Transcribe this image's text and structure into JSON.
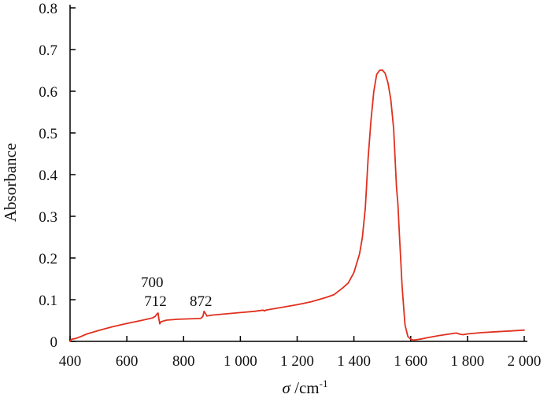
{
  "chart_data": {
    "type": "line",
    "title": "",
    "ylabel": "Absorbance",
    "xlabel_symbol": "σ",
    "xlabel_unit": " /cm",
    "xlabel_exponent": "-1",
    "xlim": [
      400,
      2000
    ],
    "ylim": [
      0,
      0.8
    ],
    "xticks": [
      {
        "value": 400,
        "label": "400"
      },
      {
        "value": 600,
        "label": "600"
      },
      {
        "value": 800,
        "label": "800"
      },
      {
        "value": 1000,
        "label": "1 000"
      },
      {
        "value": 1200,
        "label": "1 200"
      },
      {
        "value": 1400,
        "label": "1 400"
      },
      {
        "value": 1600,
        "label": "1 600"
      },
      {
        "value": 1800,
        "label": "1 800"
      },
      {
        "value": 2000,
        "label": "2 000"
      }
    ],
    "yticks": [
      {
        "value": 0,
        "label": "0"
      },
      {
        "value": 0.1,
        "label": "0.1"
      },
      {
        "value": 0.2,
        "label": "0.2"
      },
      {
        "value": 0.3,
        "label": "0.3"
      },
      {
        "value": 0.4,
        "label": "0.4"
      },
      {
        "value": 0.5,
        "label": "0.5"
      },
      {
        "value": 0.6,
        "label": "0.6"
      },
      {
        "value": 0.7,
        "label": "0.7"
      },
      {
        "value": 0.8,
        "label": "0.8"
      }
    ],
    "grid": false,
    "series": [
      {
        "color": "#e0301e",
        "x": [
          400,
          405,
          420,
          440,
          460,
          500,
          550,
          600,
          650,
          690,
          700,
          705,
          710,
          712,
          716,
          720,
          740,
          780,
          820,
          860,
          868,
          872,
          876,
          882,
          900,
          950,
          1000,
          1050,
          1080,
          1085,
          1090,
          1150,
          1200,
          1250,
          1300,
          1330,
          1360,
          1380,
          1400,
          1420,
          1430,
          1440,
          1445,
          1450,
          1460,
          1470,
          1480,
          1490,
          1500,
          1510,
          1520,
          1530,
          1540,
          1550,
          1555,
          1560,
          1570,
          1580,
          1590,
          1600,
          1610,
          1620,
          1640,
          1660,
          1700,
          1760,
          1775,
          1785,
          1800,
          1850,
          1900,
          1950,
          2000
        ],
        "y": [
          0.0,
          0.005,
          0.007,
          0.012,
          0.018,
          0.026,
          0.035,
          0.043,
          0.05,
          0.056,
          0.06,
          0.065,
          0.068,
          0.058,
          0.042,
          0.047,
          0.051,
          0.053,
          0.054,
          0.055,
          0.06,
          0.072,
          0.068,
          0.061,
          0.063,
          0.066,
          0.069,
          0.072,
          0.075,
          0.073,
          0.075,
          0.082,
          0.088,
          0.095,
          0.105,
          0.112,
          0.128,
          0.14,
          0.165,
          0.21,
          0.25,
          0.32,
          0.38,
          0.44,
          0.53,
          0.6,
          0.64,
          0.65,
          0.651,
          0.643,
          0.62,
          0.58,
          0.51,
          0.37,
          0.33,
          0.26,
          0.13,
          0.04,
          0.012,
          0.005,
          0.003,
          0.004,
          0.006,
          0.009,
          0.014,
          0.02,
          0.017,
          0.016,
          0.018,
          0.021,
          0.023,
          0.025,
          0.027
        ]
      }
    ],
    "annotations": [
      {
        "text": "700",
        "x": 700,
        "y": 0.13
      },
      {
        "text": "712",
        "x": 712,
        "y": 0.085
      },
      {
        "text": "872",
        "x": 872,
        "y": 0.085
      }
    ]
  }
}
